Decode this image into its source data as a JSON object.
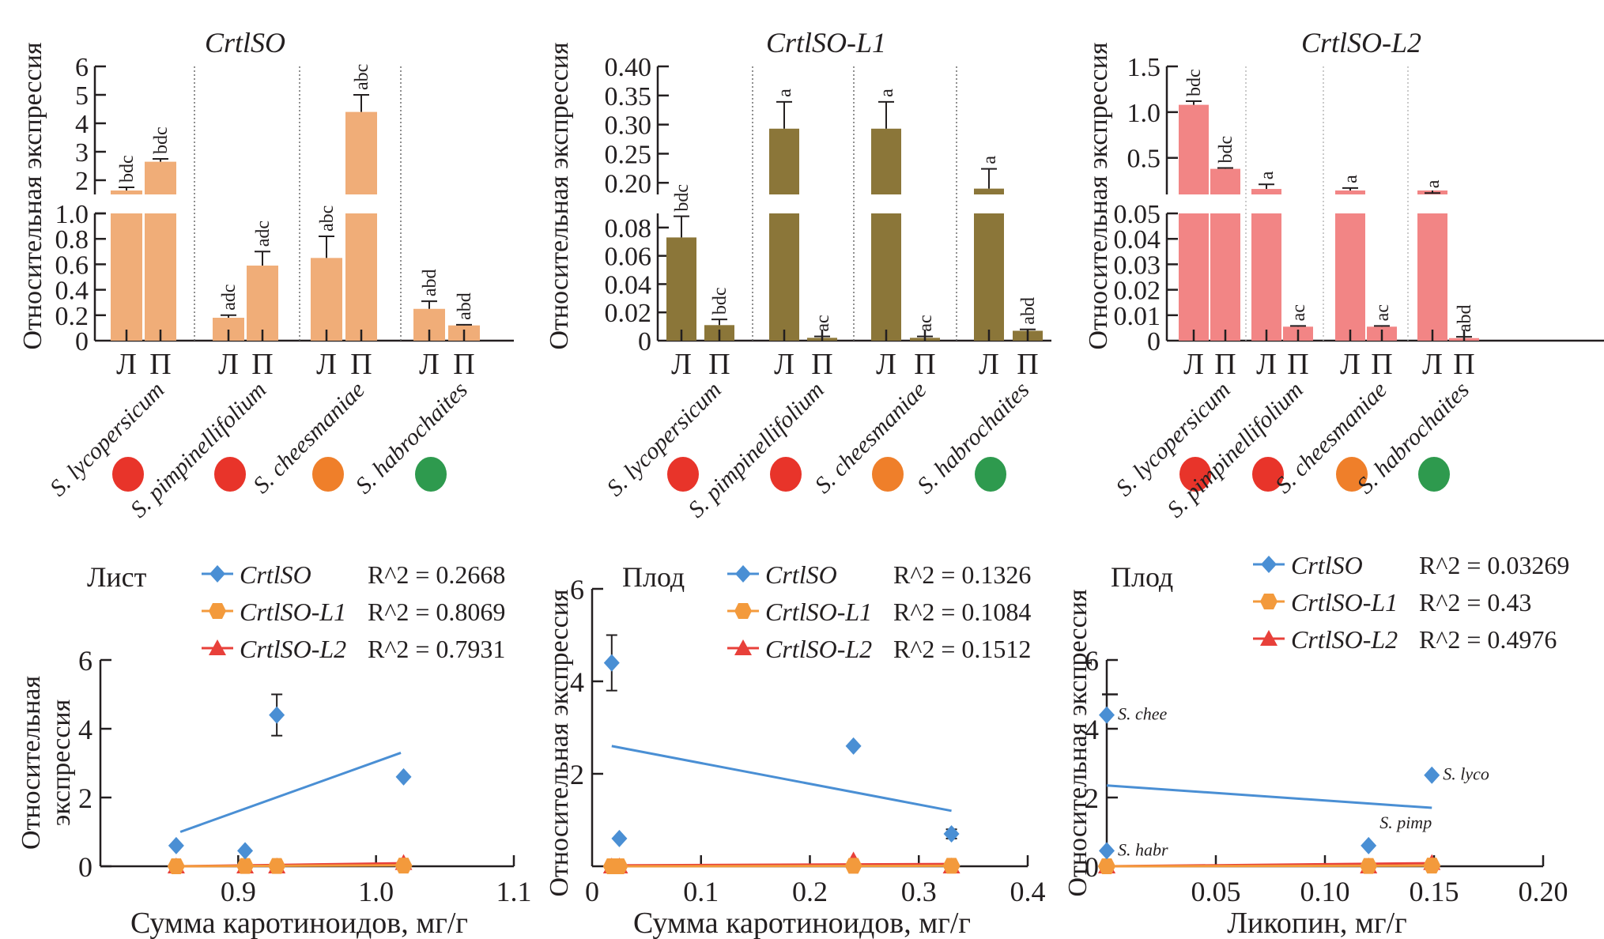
{
  "figure": {
    "bar_ylabel": "Относительная экспрессия",
    "tissue_labels": [
      "Л",
      "П"
    ],
    "species": [
      {
        "name": "S. lycopersicum",
        "fruit_color": "#e8342a"
      },
      {
        "name": "S. pimpinellifolium",
        "fruit_color": "#e8342a"
      },
      {
        "name": "S. cheesmaniae",
        "fruit_color": "#ef7f2a"
      },
      {
        "name": "S. habrochaites",
        "fruit_color": "#2e9a4e"
      }
    ]
  },
  "chart_data": [
    {
      "type": "bar",
      "title": "CrtlSO",
      "ylabel": "Относительная экспрессия",
      "bar_color": "#f0ad78",
      "broken_axis": true,
      "upper_segment": {
        "ylim": [
          1.5,
          6
        ],
        "ticks": [
          "2",
          "3",
          "4",
          "5",
          "6"
        ],
        "tick_values": [
          2,
          3,
          4,
          5,
          6
        ]
      },
      "lower_segment": {
        "ylim": [
          0,
          1.0
        ],
        "ticks": [
          "0",
          "0.2",
          "0.4",
          "0.6",
          "0.8",
          "1.0"
        ],
        "tick_values": [
          0,
          0.2,
          0.4,
          0.6,
          0.8,
          1.0
        ]
      },
      "categories": [
        "S. lycopersicum Л",
        "S. lycopersicum П",
        "S. pimpinellifolium Л",
        "S. pimpinellifolium П",
        "S. cheesmaniae Л",
        "S. cheesmaniae П",
        "S. habrochaites Л",
        "S. habrochaites П"
      ],
      "values": [
        1.6,
        2.65,
        0.18,
        0.59,
        0.65,
        4.4,
        0.25,
        0.12
      ],
      "errors": [
        0.15,
        0.1,
        0.02,
        0.11,
        0.17,
        0.6,
        0.06,
        0.005
      ],
      "letters": [
        "bdc",
        "bdc",
        "adc",
        "adc",
        "abc",
        "abc",
        "abd",
        "abd"
      ]
    },
    {
      "type": "bar",
      "title": "CrtlSO-L1",
      "ylabel": "Относительная экспрессия",
      "bar_color": "#8b7639",
      "broken_axis": true,
      "upper_segment": {
        "ylim": [
          0.18,
          0.4
        ],
        "ticks": [
          "0.20",
          "0.25",
          "0.30",
          "0.35",
          "0.40"
        ],
        "tick_values": [
          0.2,
          0.25,
          0.3,
          0.35,
          0.4
        ]
      },
      "lower_segment": {
        "ylim": [
          0,
          0.09
        ],
        "ticks": [
          "0",
          "0.02",
          "0.04",
          "0.06",
          "0.08"
        ],
        "tick_values": [
          0,
          0.02,
          0.04,
          0.06,
          0.08
        ]
      },
      "categories": [
        "S. lycopersicum Л",
        "S. lycopersicum П",
        "S. pimpinellifolium Л",
        "S. pimpinellifolium П",
        "S. cheesmaniae Л",
        "S. cheesmaniae П",
        "S. habrochaites Л",
        "S. habrochaites П"
      ],
      "values": [
        0.073,
        0.011,
        0.293,
        0.002,
        0.293,
        0.002,
        0.19,
        0.007
      ],
      "errors": [
        0.015,
        0.004,
        0.046,
        0.001,
        0.046,
        0.001,
        0.034,
        0.001
      ],
      "letters": [
        "bdc",
        "bdc",
        "a",
        "ac",
        "a",
        "ac",
        "a",
        "abd"
      ]
    },
    {
      "type": "bar",
      "title": "CrtlSO-L2",
      "ylabel": "Относительная экспрессия",
      "bar_color": "#f28585",
      "broken_axis": true,
      "upper_segment": {
        "ylim": [
          0.1,
          1.5
        ],
        "ticks": [
          "0.5",
          "1.0",
          "1.5"
        ],
        "tick_values": [
          0.5,
          1.0,
          1.5
        ]
      },
      "lower_segment": {
        "ylim": [
          0,
          0.05
        ],
        "ticks": [
          "0",
          "0.01",
          "0.02",
          "0.03",
          "0.04",
          "0.05"
        ],
        "tick_values": [
          0,
          0.01,
          0.02,
          0.03,
          0.04,
          0.05
        ]
      },
      "categories": [
        "S. lycopersicum Л",
        "S. lycopersicum П",
        "S. pimpinellifolium Л",
        "S. pimpinellifolium П",
        "S. cheesmaniae Л",
        "S. cheesmaniae П",
        "S. habrochaites Л",
        "S. habrochaites П"
      ],
      "values": [
        1.08,
        0.38,
        0.16,
        0.0055,
        0.13,
        0.0055,
        0.105,
        0.001
      ],
      "errors": [
        0.04,
        0.01,
        0.05,
        0.0003,
        0.04,
        0.0003,
        0.01,
        0.0005
      ],
      "letters": [
        "bdc",
        "bdc",
        "a",
        "ac",
        "a",
        "ac",
        "a",
        "abd"
      ]
    },
    {
      "type": "scatter",
      "panel_label": "Лист",
      "xlabel": "Сумма каротиноидов, мг/г",
      "ylabel": "Относительная экспрессия",
      "xlim": [
        0.8,
        1.1
      ],
      "ylim": [
        0,
        6
      ],
      "xticks": [
        "0.9",
        "1.0",
        "1.1"
      ],
      "xtick_values": [
        0.9,
        1.0,
        1.1
      ],
      "yticks": [
        "0",
        "2",
        "4",
        "6"
      ],
      "ytick_values": [
        0,
        2,
        4,
        6
      ],
      "legend_position": "top",
      "series": [
        {
          "name": "CrtlSO",
          "color": "#4a8fd4",
          "marker": "diamond",
          "r2": "R^2 = 0.2668",
          "points": [
            [
              0.855,
              0.6
            ],
            [
              0.905,
              0.45
            ],
            [
              0.928,
              4.4
            ],
            [
              1.02,
              2.6
            ]
          ],
          "errors": [
            0,
            0,
            0.6,
            0
          ],
          "trend": [
            [
              0.858,
              1.0
            ],
            [
              1.018,
              3.3
            ]
          ]
        },
        {
          "name": "CrtlSO-L1",
          "color": "#f39a3c",
          "marker": "circle",
          "r2": "R^2 = 0.8069",
          "points": [
            [
              0.855,
              0.0
            ],
            [
              0.905,
              0.01
            ],
            [
              0.928,
              0.01
            ],
            [
              1.02,
              0.02
            ]
          ],
          "trend": [
            [
              0.855,
              0.0
            ],
            [
              1.02,
              0.03
            ]
          ]
        },
        {
          "name": "CrtlSO-L2",
          "color": "#e8403a",
          "marker": "triangle",
          "r2": "R^2 = 0.7931",
          "points": [
            [
              0.855,
              0.0
            ],
            [
              0.905,
              0.0
            ],
            [
              0.928,
              0.0
            ],
            [
              1.02,
              0.1
            ]
          ],
          "trend": [
            [
              0.855,
              0.0
            ],
            [
              1.02,
              0.09
            ]
          ]
        }
      ]
    },
    {
      "type": "scatter",
      "panel_label": "Плод",
      "xlabel": "Сумма каротиноидов, мг/г",
      "ylabel": "Относительная экспрессия",
      "xlim": [
        0,
        0.4
      ],
      "ylim": [
        0,
        6
      ],
      "xticks": [
        "0",
        "0.1",
        "0.2",
        "0.3",
        "0.4"
      ],
      "xtick_values": [
        0,
        0.1,
        0.2,
        0.3,
        0.4
      ],
      "yticks": [
        "2",
        "4",
        "6"
      ],
      "ytick_values": [
        2,
        4,
        6
      ],
      "legend_position": "top",
      "series": [
        {
          "name": "CrtlSO",
          "color": "#4a8fd4",
          "marker": "diamond",
          "r2": "R^2 = 0.1326",
          "points": [
            [
              0.018,
              4.4
            ],
            [
              0.025,
              0.6
            ],
            [
              0.24,
              2.6
            ],
            [
              0.33,
              0.7
            ]
          ],
          "errors": [
            0.6,
            0,
            0,
            0.1
          ],
          "trend": [
            [
              0.018,
              2.6
            ],
            [
              0.33,
              1.2
            ]
          ]
        },
        {
          "name": "CrtlSO-L1",
          "color": "#f39a3c",
          "marker": "circle",
          "r2": "R^2 = 0.1084",
          "points": [
            [
              0.018,
              0.0
            ],
            [
              0.025,
              0.0
            ],
            [
              0.24,
              0.01
            ],
            [
              0.33,
              0.01
            ]
          ],
          "trend": [
            [
              0.018,
              0.0
            ],
            [
              0.33,
              0.01
            ]
          ]
        },
        {
          "name": "CrtlSO-L2",
          "color": "#e8403a",
          "marker": "triangle",
          "r2": "R^2 = 0.1512",
          "points": [
            [
              0.018,
              0.0
            ],
            [
              0.025,
              0.0
            ],
            [
              0.24,
              0.13
            ],
            [
              0.33,
              0.0
            ]
          ],
          "trend": [
            [
              0.018,
              0.02
            ],
            [
              0.33,
              0.05
            ]
          ]
        }
      ]
    },
    {
      "type": "scatter",
      "panel_label": "Плод",
      "xlabel": "Ликопин, мг/г",
      "ylabel": "Относительная экспрессия",
      "xlim": [
        0,
        0.2
      ],
      "ylim": [
        0,
        6
      ],
      "xticks": [
        "0.05",
        "0.10",
        "0.15",
        "0.20"
      ],
      "xtick_values": [
        0.05,
        0.1,
        0.15,
        0.2
      ],
      "yticks": [
        "0",
        "2",
        "4",
        "6"
      ],
      "ytick_values": [
        0,
        2,
        4,
        6
      ],
      "legend_position": "top",
      "series": [
        {
          "name": "CrtlSO",
          "color": "#4a8fd4",
          "marker": "diamond",
          "r2": "R^2 = 0.03269",
          "points": [
            [
              0.0,
              4.4
            ],
            [
              0.0,
              0.45
            ],
            [
              0.12,
              0.6
            ],
            [
              0.149,
              2.65
            ]
          ],
          "point_labels": [
            "S. chee",
            "S. habr",
            "S. pimp",
            "S. lyco"
          ],
          "trend": [
            [
              0.0,
              2.35
            ],
            [
              0.149,
              1.7
            ]
          ]
        },
        {
          "name": "CrtlSO-L1",
          "color": "#f39a3c",
          "marker": "circle",
          "r2": "R^2 = 0.43",
          "points": [
            [
              0.0,
              0.0
            ],
            [
              0.0,
              0.0
            ],
            [
              0.12,
              0.01
            ],
            [
              0.149,
              0.02
            ]
          ],
          "trend": [
            [
              0.0,
              0.0
            ],
            [
              0.149,
              0.02
            ]
          ]
        },
        {
          "name": "CrtlSO-L2",
          "color": "#e8403a",
          "marker": "triangle",
          "r2": "R^2 = 0.4976",
          "points": [
            [
              0.0,
              0.0
            ],
            [
              0.0,
              0.0
            ],
            [
              0.12,
              0.0
            ],
            [
              0.149,
              0.1
            ]
          ],
          "trend": [
            [
              0.0,
              0.0
            ],
            [
              0.149,
              0.09
            ]
          ]
        }
      ]
    }
  ]
}
